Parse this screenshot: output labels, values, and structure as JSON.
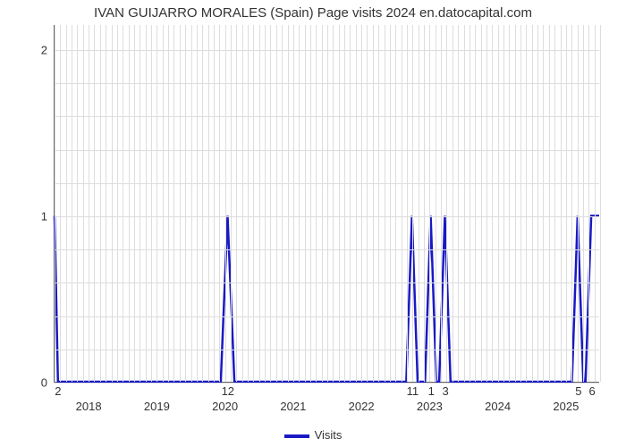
{
  "chart": {
    "type": "line",
    "title": "IVAN GUIJARRO MORALES (Spain) Page visits 2024 en.datocapital.com",
    "title_fontsize": 15,
    "title_color": "#333333",
    "background_color": "#ffffff",
    "grid_color": "#dddddd",
    "axis_color": "#666666",
    "line_color": "#1919c5",
    "line_width": 2.5,
    "x_months_range": [
      0,
      96
    ],
    "ylim": [
      0,
      2.15
    ],
    "yticks": [
      0,
      1,
      2
    ],
    "x_year_ticks": [
      {
        "month": 6,
        "label": "2018"
      },
      {
        "month": 18,
        "label": "2019"
      },
      {
        "month": 30,
        "label": "2020"
      },
      {
        "month": 42,
        "label": "2021"
      },
      {
        "month": 54,
        "label": "2022"
      },
      {
        "month": 66,
        "label": "2023"
      },
      {
        "month": 78,
        "label": "2024"
      },
      {
        "month": 90,
        "label": "2025"
      }
    ],
    "value_labels": [
      {
        "month": 0.6,
        "text": "2"
      },
      {
        "month": 30.5,
        "text": "12"
      },
      {
        "month": 63,
        "text": "11"
      },
      {
        "month": 66.3,
        "text": "1"
      },
      {
        "month": 68.8,
        "text": "3"
      },
      {
        "month": 92.2,
        "text": "5"
      },
      {
        "month": 94.6,
        "text": "6"
      }
    ],
    "data_points": [
      {
        "m": 0,
        "v": 1
      },
      {
        "m": 0.6,
        "v": 0
      },
      {
        "m": 29.3,
        "v": 0
      },
      {
        "m": 30.5,
        "v": 1
      },
      {
        "m": 31.7,
        "v": 0
      },
      {
        "m": 62.0,
        "v": 0
      },
      {
        "m": 63.0,
        "v": 1
      },
      {
        "m": 64.0,
        "v": 0
      },
      {
        "m": 65.3,
        "v": 0
      },
      {
        "m": 66.3,
        "v": 1
      },
      {
        "m": 67.3,
        "v": 0
      },
      {
        "m": 67.8,
        "v": 0
      },
      {
        "m": 68.8,
        "v": 1
      },
      {
        "m": 69.8,
        "v": 0
      },
      {
        "m": 91.2,
        "v": 0
      },
      {
        "m": 92.2,
        "v": 1
      },
      {
        "m": 93.2,
        "v": 0
      },
      {
        "m": 93.6,
        "v": 0
      },
      {
        "m": 94.6,
        "v": 1
      },
      {
        "m": 96.0,
        "v": 1
      }
    ],
    "legend": {
      "label": "Visits"
    },
    "tick_fontsize": 13
  }
}
